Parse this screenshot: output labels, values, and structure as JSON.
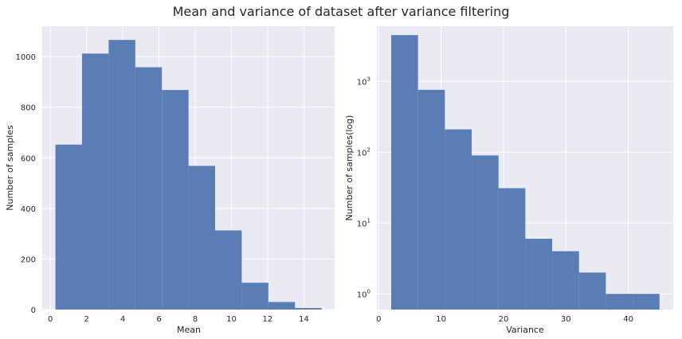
{
  "figure": {
    "title": "Mean and variance of dataset after variance filtering"
  },
  "colors": {
    "bar": "#5b7db6",
    "plot_background": "#eaeaf2",
    "grid": "#ffffff",
    "text": "#262626"
  },
  "chart_data": [
    {
      "type": "bar",
      "subtype": "histogram",
      "xlabel": "Mean",
      "ylabel": "Number of samples",
      "xlim": [
        -0.45,
        15.7
      ],
      "ylim": [
        0,
        1120
      ],
      "x_ticks": [
        0,
        2,
        4,
        6,
        8,
        10,
        12,
        14
      ],
      "y_ticks": [
        0,
        200,
        400,
        600,
        800,
        1000
      ],
      "grid": true,
      "bin_edges": [
        0.28,
        1.75,
        3.22,
        4.69,
        6.16,
        7.63,
        9.1,
        10.57,
        12.04,
        13.51,
        14.98
      ],
      "values": [
        652,
        1012,
        1066,
        958,
        868,
        568,
        313,
        106,
        30,
        6
      ]
    },
    {
      "type": "bar",
      "subtype": "histogram",
      "scale_y": "log",
      "xlabel": "Variance",
      "ylabel": "Number of samples(log)",
      "xlim": [
        -0.3,
        47.2
      ],
      "ylim": [
        0.6,
        6000
      ],
      "x_ticks": [
        0,
        10,
        20,
        30,
        40
      ],
      "y_ticks": [
        {
          "value": 1,
          "base": "10",
          "exp": "0"
        },
        {
          "value": 10,
          "base": "10",
          "exp": "1"
        },
        {
          "value": 100,
          "base": "10",
          "exp": "2"
        },
        {
          "value": 1000,
          "base": "10",
          "exp": "3"
        }
      ],
      "grid": true,
      "bin_edges": [
        2.0,
        6.3,
        10.6,
        14.9,
        19.2,
        23.5,
        27.8,
        32.1,
        36.4,
        40.7,
        45.0
      ],
      "values": [
        4500,
        760,
        210,
        90,
        31,
        6,
        4,
        2,
        1,
        1
      ]
    }
  ]
}
